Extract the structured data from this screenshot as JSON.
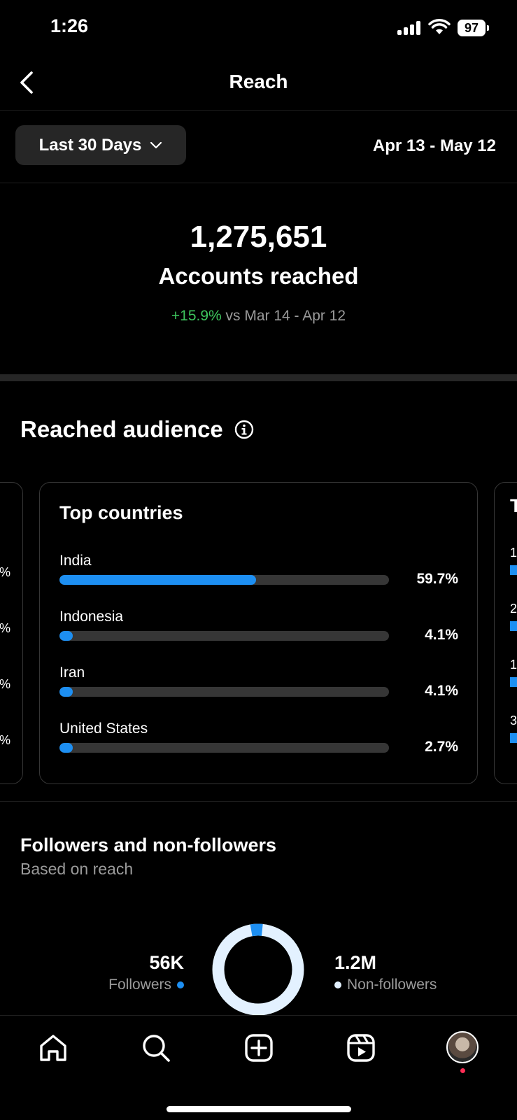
{
  "status": {
    "time": "1:26",
    "battery": "97"
  },
  "header": {
    "title": "Reach"
  },
  "filter": {
    "range_label": "Last 30 Days",
    "date_range": "Apr 13 - May 12"
  },
  "summary": {
    "value": "1,275,651",
    "label": "Accounts reached",
    "change": "+15.9%",
    "compare_text": "vs Mar 14 - Apr 12"
  },
  "audience": {
    "title": "Reached audience",
    "card_title": "Top countries",
    "countries": [
      {
        "name": "India",
        "percent": "59.7%",
        "value": 59.7
      },
      {
        "name": "Indonesia",
        "percent": "4.1%",
        "value": 4.1
      },
      {
        "name": "Iran",
        "percent": "4.1%",
        "value": 4.1
      },
      {
        "name": "United States",
        "percent": "2.7%",
        "value": 2.7
      }
    ],
    "left_peek": [
      "%",
      "%",
      "%",
      "%"
    ],
    "right_peek_title": "T",
    "right_peek": [
      "1",
      "2",
      "1",
      "3"
    ]
  },
  "followers": {
    "title": "Followers and non-followers",
    "subtitle": "Based on reach",
    "followers_value": "56K",
    "followers_label": "Followers",
    "non_followers_value": "1.2M",
    "non_followers_label": "Non-followers",
    "followers_fraction": 0.044,
    "colors": {
      "followers": "#1d8ff2",
      "non_followers": "#e3f1ff"
    }
  },
  "tabs": [
    "home-icon",
    "search-icon",
    "create-icon",
    "reels-icon",
    "profile-avatar"
  ]
}
